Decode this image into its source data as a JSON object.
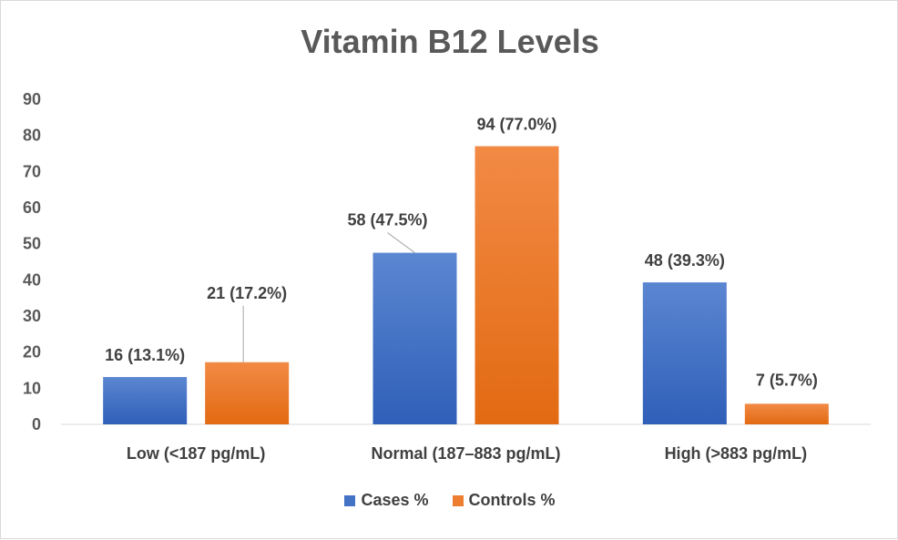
{
  "chart_data": {
    "type": "bar",
    "title": "Vitamin B12 Levels",
    "xlabel": "",
    "ylabel": "",
    "ylim": [
      0,
      90
    ],
    "yticks": [
      0,
      10,
      20,
      30,
      40,
      50,
      60,
      70,
      80,
      90
    ],
    "ytick_labels": [
      "0",
      "10",
      "20",
      "30",
      "40",
      "50",
      "60",
      "70",
      "80",
      "90"
    ],
    "categories": [
      "Low (<187 pg/mL)",
      "Normal (187–883 pg/mL)",
      "High (>883 pg/mL)"
    ],
    "series": [
      {
        "name": "Cases %",
        "color": "#4472c4",
        "values": [
          13.1,
          47.5,
          39.3
        ],
        "data_labels": [
          "16 (13.1%)",
          "58 (47.5%)",
          "48 (39.3%)"
        ]
      },
      {
        "name": "Controls %",
        "color": "#ed7d31",
        "values": [
          17.2,
          77.0,
          5.7
        ],
        "data_labels": [
          "21 (17.2%)",
          "94 (77.0%)",
          "7 (5.7%)"
        ]
      }
    ],
    "grid": false,
    "legend_position": "bottom"
  }
}
